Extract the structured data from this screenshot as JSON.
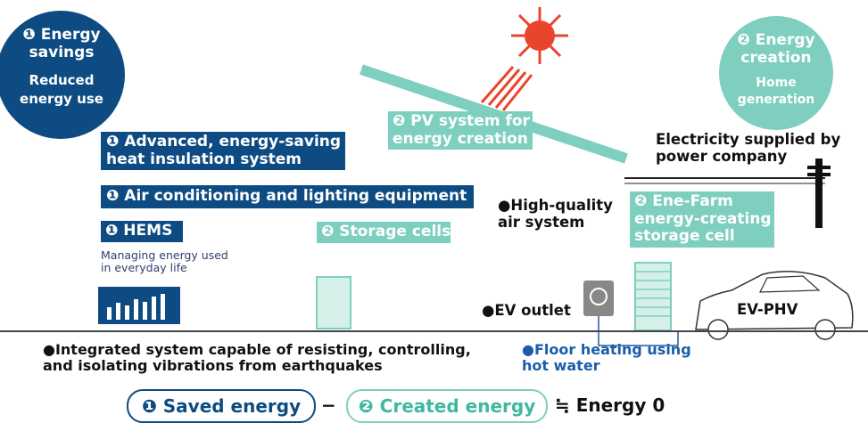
{
  "badges": {
    "savings": {
      "title": [
        "❶ Energy",
        "savings"
      ],
      "subtitle": [
        "Reduced",
        "energy use"
      ]
    },
    "creation": {
      "title": [
        "❷ Energy",
        "creation"
      ],
      "subtitle": [
        "Home",
        "generation"
      ]
    }
  },
  "labels": {
    "insulation": [
      "❶ Advanced, energy-saving",
      "heat insulation system"
    ],
    "air_conditioning": "❶ Air conditioning and lighting equipment",
    "hems": "❶ HEMS",
    "hems_note": [
      "Managing energy used",
      "in everyday life"
    ],
    "pv": [
      "❷ PV system for",
      "energy creation"
    ],
    "storage": "❷ Storage cells",
    "ene_farm": [
      "❷ Ene-Farm",
      "energy-creating",
      "storage cell"
    ],
    "power_company": [
      "Electricity supplied by",
      "power company"
    ],
    "air_system": [
      "●High-quality",
      "air system"
    ],
    "ev_outlet": "●EV outlet",
    "car": "EV-PHV",
    "earthquake": [
      "●Integrated system capable of resisting, controlling,",
      "and isolating vibrations from earthquakes"
    ],
    "floor_heating": [
      "●Floor heating using",
      "hot water"
    ]
  },
  "formula": {
    "saved": "❶ Saved energy",
    "minus": "−",
    "created": "❷ Created energy",
    "result": "≒ Energy 0"
  }
}
